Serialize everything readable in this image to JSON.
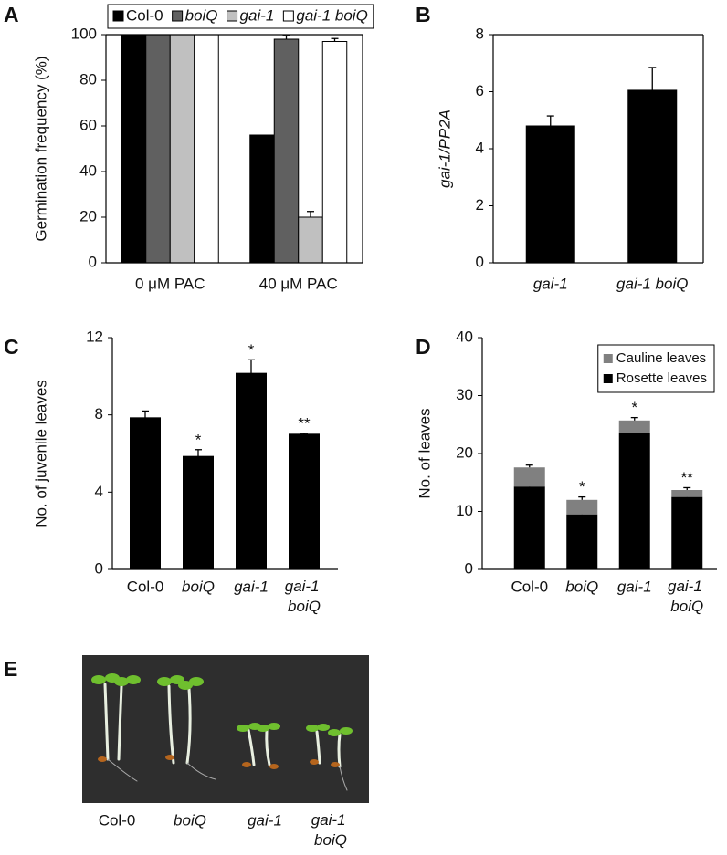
{
  "chart_data": [
    {
      "type": "bar",
      "panel_label": "A",
      "y_label": "Germination frequency (%)",
      "categories": [
        "0 μM PAC",
        "40 μM PAC"
      ],
      "series": [
        {
          "name": "Col-0",
          "color": "#000000",
          "values": [
            100,
            56
          ],
          "errors": [
            null,
            null
          ]
        },
        {
          "name": "boiQ",
          "color": "#606060",
          "values": [
            100,
            98
          ],
          "errors": [
            null,
            1.5
          ]
        },
        {
          "name": "gai-1",
          "color": "#c0c0c0",
          "values": [
            100,
            20
          ],
          "errors": [
            null,
            2.5
          ]
        },
        {
          "name": "gai-1 boiQ",
          "color": "#ffffff",
          "values": [
            100,
            97
          ],
          "errors": [
            null,
            1.3
          ]
        }
      ],
      "ylim": [
        0,
        100
      ],
      "yticks": [
        0,
        20,
        40,
        60,
        80,
        100
      ],
      "legend": "top"
    },
    {
      "type": "bar",
      "panel_label": "B",
      "y_label": "gai-1/PP2A",
      "categories": [
        "gai-1",
        "gai-1 boiQ"
      ],
      "values": [
        4.8,
        6.05
      ],
      "errors": [
        0.35,
        0.8
      ],
      "color": "#000000",
      "ylim": [
        0,
        8
      ],
      "yticks": [
        0,
        2,
        4,
        6,
        8
      ]
    },
    {
      "type": "bar",
      "panel_label": "C",
      "y_label": "No. of juvenile leaves",
      "categories": [
        "Col-0",
        "boiQ",
        "gai-1",
        "gai-1 boiQ"
      ],
      "values": [
        7.85,
        5.85,
        10.15,
        7.0
      ],
      "errors": [
        0.35,
        0.35,
        0.7,
        0.05
      ],
      "significance": [
        null,
        "*",
        "*",
        "**"
      ],
      "color": "#000000",
      "ylim": [
        0,
        12
      ],
      "yticks": [
        0,
        4,
        8,
        12
      ]
    },
    {
      "type": "stacked_bar",
      "panel_label": "D",
      "y_label": "No. of leaves",
      "categories": [
        "Col-0",
        "boiQ",
        "gai-1",
        "gai-1 boiQ"
      ],
      "series": [
        {
          "name": "Rosette leaves",
          "color": "#000000",
          "values": [
            14.3,
            9.5,
            23.5,
            12.5
          ],
          "errors": [
            0.5,
            0.5,
            0.6,
            0.4
          ]
        },
        {
          "name": "Cauline leaves",
          "color": "#808080",
          "values": [
            3.3,
            2.5,
            2.2,
            1.2
          ],
          "errors": [
            0.4,
            0.5,
            0.5,
            0.4
          ]
        }
      ],
      "significance": [
        null,
        "*",
        "*",
        "**"
      ],
      "ylim": [
        0,
        40
      ],
      "yticks": [
        0,
        10,
        20,
        30,
        40
      ],
      "legend": "upper right"
    }
  ],
  "photo": {
    "panel_label": "E",
    "captions": [
      "Col-0",
      "boiQ",
      "gai-1",
      "gai-1 boiQ"
    ]
  }
}
